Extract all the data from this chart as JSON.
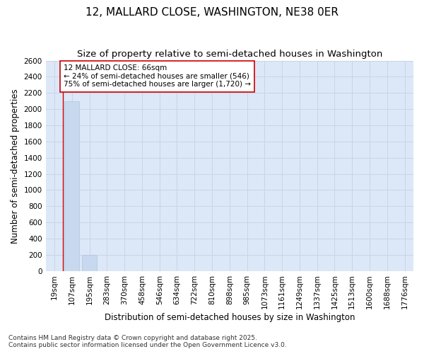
{
  "title": "12, MALLARD CLOSE, WASHINGTON, NE38 0ER",
  "subtitle": "Size of property relative to semi-detached houses in Washington",
  "xlabel": "Distribution of semi-detached houses by size in Washington",
  "ylabel": "Number of semi-detached properties",
  "footnote1": "Contains HM Land Registry data © Crown copyright and database right 2025.",
  "footnote2": "Contains public sector information licensed under the Open Government Licence v3.0.",
  "bin_labels": [
    "19sqm",
    "107sqm",
    "195sqm",
    "283sqm",
    "370sqm",
    "458sqm",
    "546sqm",
    "634sqm",
    "722sqm",
    "810sqm",
    "898sqm",
    "985sqm",
    "1073sqm",
    "1161sqm",
    "1249sqm",
    "1337sqm",
    "1425sqm",
    "1513sqm",
    "1600sqm",
    "1688sqm",
    "1776sqm"
  ],
  "bar_values": [
    0,
    2100,
    200,
    0,
    0,
    0,
    0,
    0,
    0,
    0,
    0,
    0,
    0,
    0,
    0,
    0,
    0,
    0,
    0,
    0,
    0
  ],
  "bar_color": "#c8d8ee",
  "bar_edge_color": "#b0c4de",
  "grid_color": "#c8d4e8",
  "background_color": "#dce8f8",
  "vline_color": "#cc0000",
  "vline_pos": 0.5,
  "annotation_text": "12 MALLARD CLOSE: 66sqm\n← 24% of semi-detached houses are smaller (546)\n75% of semi-detached houses are larger (1,720) →",
  "annotation_box_facecolor": "#ffffff",
  "annotation_box_edgecolor": "#cc0000",
  "ylim": [
    0,
    2600
  ],
  "yticks": [
    0,
    200,
    400,
    600,
    800,
    1000,
    1200,
    1400,
    1600,
    1800,
    2000,
    2200,
    2400,
    2600
  ],
  "title_fontsize": 11,
  "subtitle_fontsize": 9.5,
  "axis_label_fontsize": 8.5,
  "tick_fontsize": 7.5,
  "annotation_fontsize": 7.5,
  "footnote_fontsize": 6.5
}
